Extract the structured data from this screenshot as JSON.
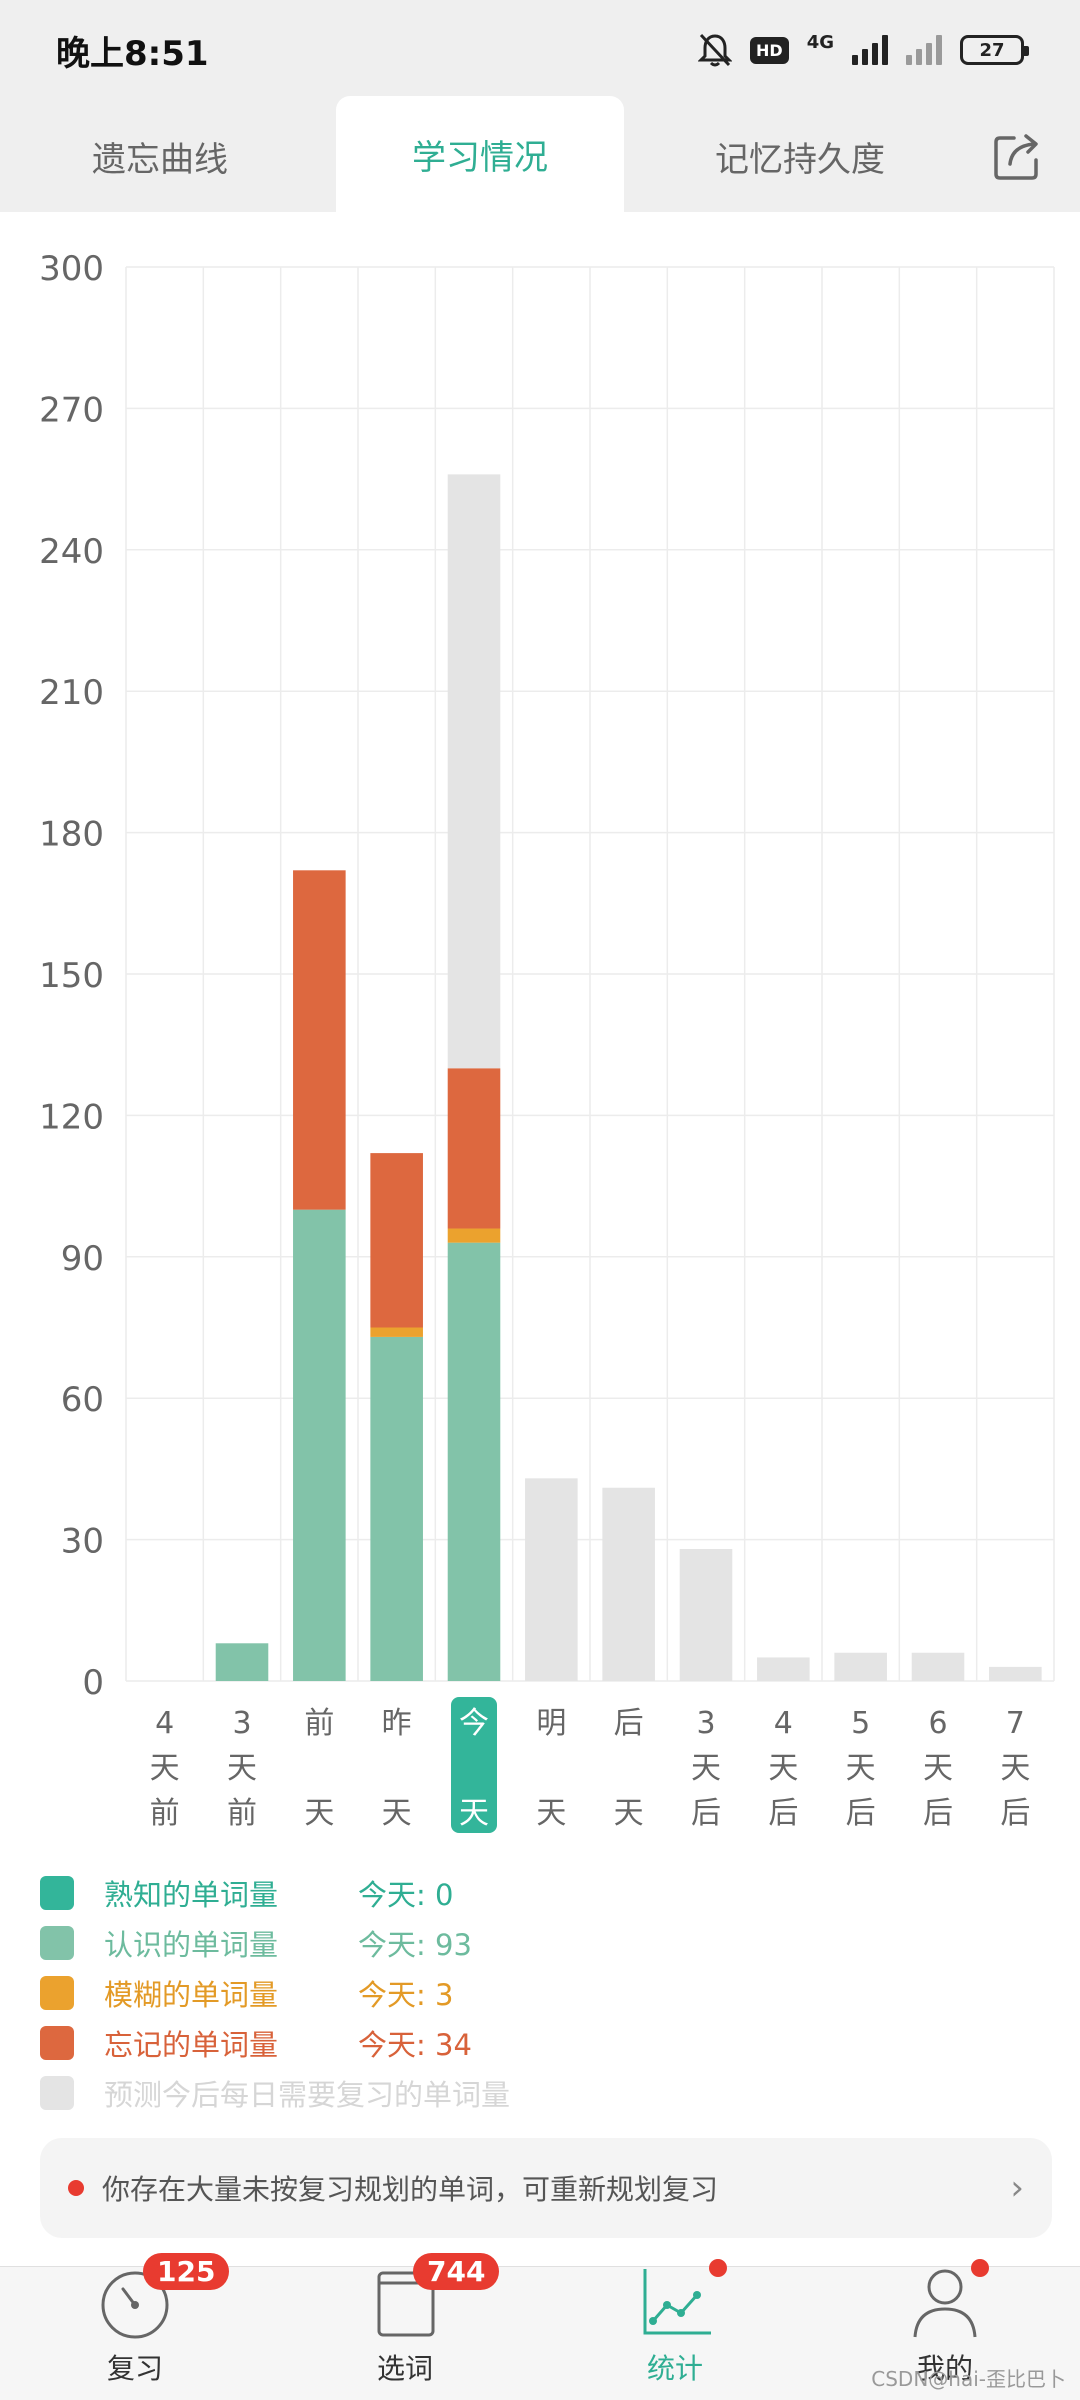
{
  "status_bar": {
    "time": "晚上8:51",
    "hd": "HD",
    "network": "4G",
    "battery": "27"
  },
  "tabs": [
    {
      "label": "遗忘曲线",
      "active": false
    },
    {
      "label": "学习情况",
      "active": true
    },
    {
      "label": "记忆持久度",
      "active": false
    }
  ],
  "chart_data": {
    "type": "bar",
    "stacked": true,
    "ylim": [
      0,
      300
    ],
    "yticks": [
      0,
      30,
      60,
      90,
      120,
      150,
      180,
      210,
      240,
      270,
      300
    ],
    "categories": [
      "4天前",
      "3天前",
      "前天",
      "昨天",
      "今天",
      "明天",
      "后天",
      "3天后",
      "4天后",
      "5天后",
      "6天后",
      "7天后"
    ],
    "highlight_index": 4,
    "grid": true,
    "series": [
      {
        "name": "熟知的单词量",
        "color": "#33b59a",
        "values": [
          0,
          0,
          0,
          0,
          0,
          0,
          0,
          0,
          0,
          0,
          0,
          0
        ]
      },
      {
        "name": "认识的单词量",
        "color": "#82c3a9",
        "values": [
          0,
          8,
          100,
          73,
          93,
          0,
          0,
          0,
          0,
          0,
          0,
          0
        ]
      },
      {
        "name": "模糊的单词量",
        "color": "#eba22e",
        "values": [
          0,
          0,
          0,
          2,
          3,
          0,
          0,
          0,
          0,
          0,
          0,
          0
        ]
      },
      {
        "name": "忘记的单词量",
        "color": "#dd683f",
        "values": [
          0,
          0,
          72,
          37,
          34,
          0,
          0,
          0,
          0,
          0,
          0,
          0
        ]
      },
      {
        "name": "预测今后每日需要复习的单词量",
        "color": "#e4e4e4",
        "values": [
          0,
          0,
          0,
          0,
          126,
          43,
          41,
          28,
          5,
          6,
          6,
          3
        ]
      }
    ]
  },
  "legend": [
    {
      "name": "熟知的单词量",
      "today": "今天: 0",
      "color": "#33b59a",
      "text_color": "#2fae93"
    },
    {
      "name": "认识的单词量",
      "today": "今天: 93",
      "color": "#82c3a9",
      "text_color": "#6dbb9e"
    },
    {
      "name": "模糊的单词量",
      "today": "今天: 3",
      "color": "#eba22e",
      "text_color": "#e39a26"
    },
    {
      "name": "忘记的单词量",
      "today": "今天: 34",
      "color": "#dd683f",
      "text_color": "#d8623a"
    },
    {
      "name": "预测今后每日需要复习的单词量",
      "today": "",
      "color": "#e4e4e4",
      "text_color": "#d6d6d6"
    }
  ],
  "notice": {
    "text": "你存在大量未按复习规划的单词，可重新规划复习"
  },
  "bottom_nav": [
    {
      "label": "复习",
      "badge": "125",
      "icon": "dial-icon"
    },
    {
      "label": "选词",
      "badge": "744",
      "icon": "book-icon"
    },
    {
      "label": "统计",
      "badge": "",
      "icon": "line-chart-icon"
    },
    {
      "label": "我的",
      "badge": "",
      "icon": "user-icon"
    }
  ],
  "watermark": "CSDN@hai-歪比巴卜"
}
